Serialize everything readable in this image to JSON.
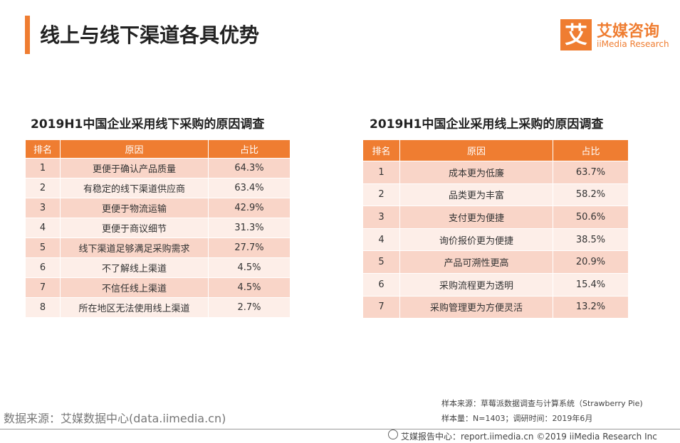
{
  "header": {
    "title": "线上与线下渠道各具优势",
    "logo_mark": "艾",
    "logo_name": "艾媒咨询",
    "logo_sub": "iiMedia Research"
  },
  "tables": [
    {
      "title": "2019H1中国企业采用线下采购的原因调查",
      "columns": [
        "排名",
        "原因",
        "占比"
      ],
      "rows": [
        [
          "1",
          "更便于确认产品质量",
          "64.3%"
        ],
        [
          "2",
          "有稳定的线下渠道供应商",
          "63.4%"
        ],
        [
          "3",
          "更便于物流运输",
          "42.9%"
        ],
        [
          "4",
          "更便于商议细节",
          "31.3%"
        ],
        [
          "5",
          "线下渠道足够满足采购需求",
          "27.7%"
        ],
        [
          "6",
          "不了解线上渠道",
          "4.5%"
        ],
        [
          "7",
          "不信任线上渠道",
          "4.5%"
        ],
        [
          "8",
          "所在地区无法使用线上渠道",
          "2.7%"
        ]
      ]
    },
    {
      "title": "2019H1中国企业采用线上采购的原因调查",
      "columns": [
        "排名",
        "原因",
        "占比"
      ],
      "rows": [
        [
          "1",
          "成本更为低廉",
          "63.7%"
        ],
        [
          "2",
          "品类更为丰富",
          "58.2%"
        ],
        [
          "3",
          "支付更为便捷",
          "50.6%"
        ],
        [
          "4",
          "询价报价更为便捷",
          "38.5%"
        ],
        [
          "5",
          "产品可溯性更高",
          "20.9%"
        ],
        [
          "6",
          "采购流程更为透明",
          "15.4%"
        ],
        [
          "7",
          "采购管理更为方便灵活",
          "13.2%"
        ]
      ]
    }
  ],
  "footer": {
    "source": "数据来源：艾媒数据中心(data.iimedia.cn)",
    "note_source": "样本来源：草莓派数据调查与计算系统（Strawberry Pie)",
    "note_sample": "样本量：N=1403；调研时间：2019年6月",
    "bottom": "艾媒报告中心：report.iimedia.cn  ©2019  iiMedia Research  Inc"
  }
}
